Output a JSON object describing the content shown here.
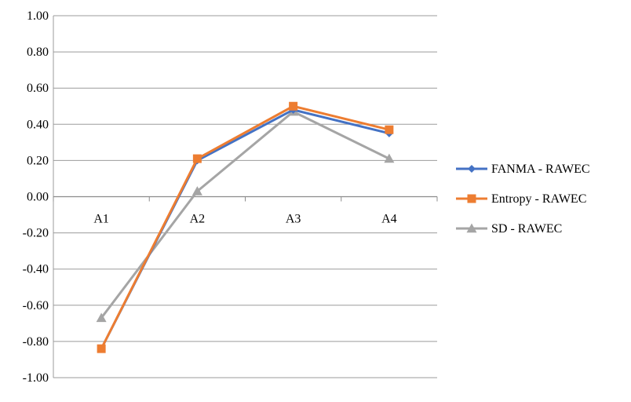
{
  "chart_data": {
    "type": "line",
    "title": "",
    "xlabel": "",
    "ylabel": "",
    "categories": [
      "A1",
      "A2",
      "A3",
      "A4"
    ],
    "ylim": [
      -1.0,
      1.0
    ],
    "y_ticks": [
      "1.00",
      "0.80",
      "0.60",
      "0.40",
      "0.20",
      "0.00",
      "-0.20",
      "-0.40",
      "-0.60",
      "-0.80",
      "-1.00"
    ],
    "grid": true,
    "legend_position": "right",
    "series": [
      {
        "name": "FANMA - RAWEC",
        "color": "#4472C4",
        "marker": "diamond",
        "values": [
          -0.84,
          0.2,
          0.48,
          0.35
        ]
      },
      {
        "name": "Entropy - RAWEC",
        "color": "#ED7D31",
        "marker": "square",
        "values": [
          -0.84,
          0.21,
          0.5,
          0.37
        ]
      },
      {
        "name": "SD - RAWEC",
        "color": "#A5A5A5",
        "marker": "triangle",
        "values": [
          -0.67,
          0.03,
          0.47,
          0.21
        ]
      }
    ]
  }
}
